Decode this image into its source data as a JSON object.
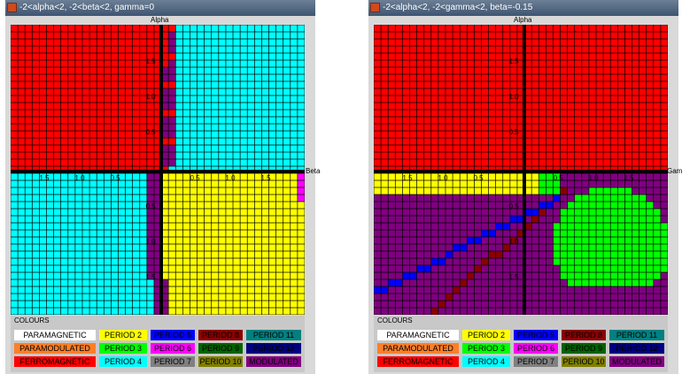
{
  "windows": [
    {
      "title": "-2<alpha<2,  -2<beta<2, gamma=0",
      "vertical_axis_label": "Alpha",
      "horizontal_axis_label": "Beta",
      "x_ticks": [
        "1.5",
        "1.0",
        "0.5",
        "0.5",
        "1.0",
        "1.5"
      ],
      "y_ticks": [
        "1.5",
        "1.0",
        "0.5",
        "0.5",
        "1.0",
        "1.5"
      ]
    },
    {
      "title": "-2<alpha<2,  -2<gamma<2, beta=-0.15",
      "vertical_axis_label": "Alpha",
      "horizontal_axis_label": "Gamm",
      "x_ticks": [
        "1.5",
        "1.0",
        "0.5",
        "0.5",
        "1.0",
        "1.5"
      ],
      "y_ticks": [
        "1.5",
        "1.0",
        "0.5",
        "0.5",
        "1.0",
        "1.5"
      ]
    }
  ],
  "legend": {
    "title": "COLOURS",
    "items": [
      {
        "label": "PARAMAGNETIC",
        "bg": "#ffffff",
        "fg": "#000000"
      },
      {
        "label": "PERIOD 2",
        "bg": "#ffff00",
        "fg": "#000000"
      },
      {
        "label": "PERIOD 5",
        "bg": "#0000ff",
        "fg": "#000000"
      },
      {
        "label": "PERIOD 8",
        "bg": "#8b0000",
        "fg": "#000000"
      },
      {
        "label": "PERIOD 11",
        "bg": "#008080",
        "fg": "#000000"
      },
      {
        "label": "PARAMODULATED",
        "bg": "#ff7f27",
        "fg": "#000000"
      },
      {
        "label": "PERIOD 3",
        "bg": "#00ff00",
        "fg": "#000000"
      },
      {
        "label": "PERIOD 6",
        "bg": "#ff00ff",
        "fg": "#000000"
      },
      {
        "label": "PERIOD 9",
        "bg": "#006400",
        "fg": "#000000"
      },
      {
        "label": "PERIOD 12",
        "bg": "#000080",
        "fg": "#000000"
      },
      {
        "label": "FERROMAGNETIC",
        "bg": "#ff0000",
        "fg": "#000000"
      },
      {
        "label": "PERIOD 4",
        "bg": "#00ffff",
        "fg": "#000000"
      },
      {
        "label": "PERIOD 7",
        "bg": "#808080",
        "fg": "#000000"
      },
      {
        "label": "PERIOD 10",
        "bg": "#808000",
        "fg": "#000000"
      },
      {
        "label": "MODULATED",
        "bg": "#800080",
        "fg": "#000000"
      }
    ]
  },
  "colors": {
    "ferromagnetic": "#ff0000",
    "period4": "#00ffff",
    "period2": "#ffff00",
    "modulated": "#800080",
    "period3": "#00ff00",
    "period5": "#0000ff",
    "period8": "#8b0000",
    "period6": "#ff00ff",
    "period7": "#808080",
    "grid": "#000000"
  }
}
